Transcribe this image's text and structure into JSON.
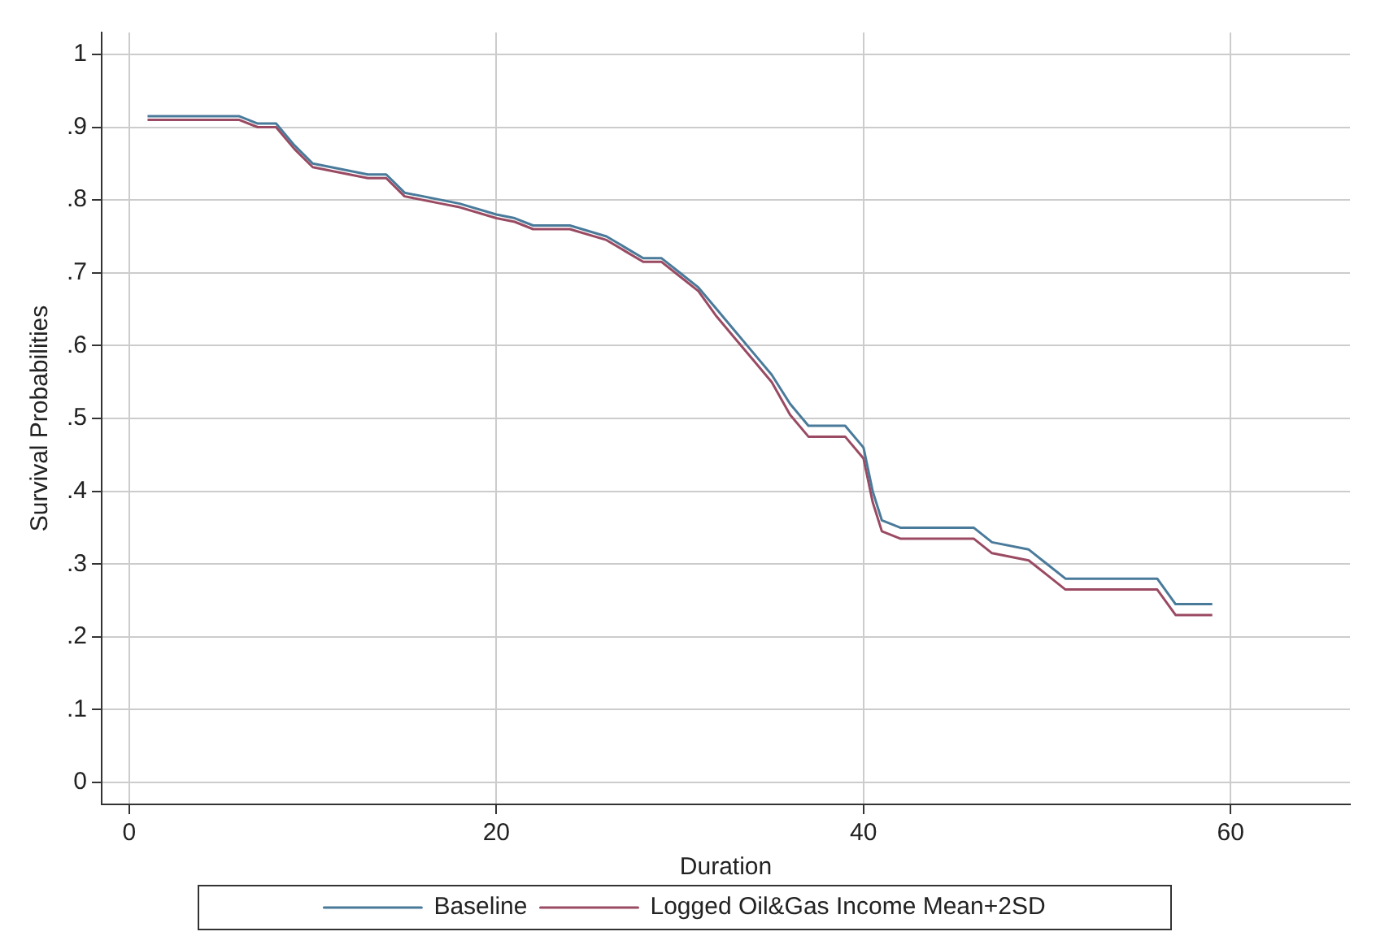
{
  "chart_data": {
    "type": "line",
    "xlabel": "Duration",
    "ylabel": "Survival Probabilities",
    "x": [
      1,
      6,
      7,
      8,
      9,
      10,
      12,
      13,
      14,
      15,
      17,
      18,
      20,
      21,
      22,
      24,
      26,
      27,
      28,
      29,
      30,
      31,
      32,
      33,
      34,
      35,
      36,
      37,
      39,
      40,
      40.5,
      41,
      42,
      46,
      47,
      49,
      50,
      51,
      56,
      57,
      59
    ],
    "series": [
      {
        "name": "Baseline",
        "color": "#4a7a9a",
        "values": [
          0.915,
          0.915,
          0.905,
          0.905,
          0.875,
          0.85,
          0.84,
          0.835,
          0.835,
          0.81,
          0.8,
          0.795,
          0.78,
          0.775,
          0.765,
          0.765,
          0.75,
          0.735,
          0.72,
          0.72,
          0.7,
          0.68,
          0.65,
          0.62,
          0.59,
          0.56,
          0.52,
          0.49,
          0.49,
          0.46,
          0.4,
          0.36,
          0.35,
          0.35,
          0.33,
          0.32,
          0.3,
          0.28,
          0.28,
          0.245,
          0.245
        ]
      },
      {
        "name": "Logged Oil&Gas Income Mean+2SD",
        "color": "#9a4a62",
        "values": [
          0.91,
          0.91,
          0.9,
          0.9,
          0.87,
          0.845,
          0.835,
          0.83,
          0.83,
          0.805,
          0.795,
          0.79,
          0.775,
          0.77,
          0.76,
          0.76,
          0.745,
          0.73,
          0.715,
          0.715,
          0.695,
          0.675,
          0.64,
          0.61,
          0.58,
          0.55,
          0.505,
          0.475,
          0.475,
          0.445,
          0.385,
          0.345,
          0.335,
          0.335,
          0.315,
          0.305,
          0.285,
          0.265,
          0.265,
          0.23,
          0.23
        ]
      }
    ],
    "xlim": [
      -1.5,
      66.5
    ],
    "xticks": [
      0,
      20,
      40,
      60
    ],
    "ylim": [
      -0.03,
      1.03
    ],
    "yticks": [
      {
        "value": 0,
        "label": "0"
      },
      {
        "value": 0.1,
        "label": ".1"
      },
      {
        "value": 0.2,
        "label": ".2"
      },
      {
        "value": 0.3,
        "label": ".3"
      },
      {
        "value": 0.4,
        "label": ".4"
      },
      {
        "value": 0.5,
        "label": ".5"
      },
      {
        "value": 0.6,
        "label": ".6"
      },
      {
        "value": 0.7,
        "label": ".7"
      },
      {
        "value": 0.8,
        "label": ".8"
      },
      {
        "value": 0.9,
        "label": ".9"
      },
      {
        "value": 1,
        "label": "1"
      }
    ],
    "grid": true,
    "legend": "bottom",
    "marker": "none",
    "line_style": "solid"
  }
}
